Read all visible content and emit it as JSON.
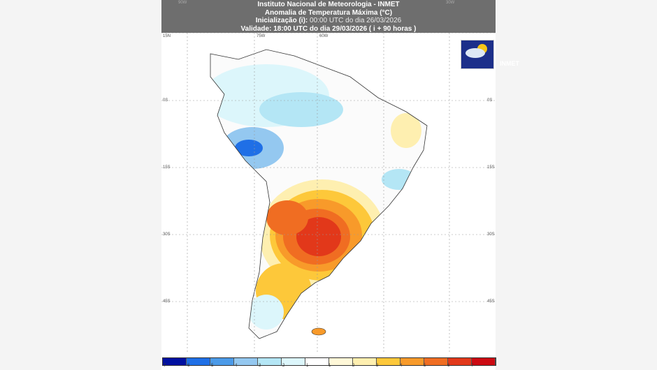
{
  "header": {
    "line1": "Instituto Nacional de Meteorologia - INMET",
    "line2": "Anomalia de Temperatura Máxima (°C)",
    "line3_label": "Inicialização (i):",
    "line3_value": "00:00 UTC do dia 26/03/2026",
    "line4": "Validade: 18:00 UTC do dia 29/03/2026 ( i + 90 horas )"
  },
  "logo": {
    "text": "INMET"
  },
  "axes": {
    "lat_labels": [
      "15N",
      "0S",
      "15S",
      "30S",
      "45S"
    ],
    "lon_labels": [
      "90W",
      "75W",
      "60W",
      "30W"
    ]
  },
  "colorbar": {
    "labels": [
      "-7",
      "-6",
      "-5",
      "-4",
      "-3",
      "-2",
      "-1",
      "1",
      "2",
      "3",
      "4",
      "5",
      "6",
      "7"
    ],
    "colors": [
      "#0010a0",
      "#1f6fe6",
      "#4b9ae8",
      "#94c8f0",
      "#b4e6f5",
      "#dcf6fb",
      "#ffffff",
      "#fff8d8",
      "#feefb0",
      "#fdc83a",
      "#f89a2a",
      "#f06d22",
      "#e2381a",
      "#cc0a12"
    ]
  }
}
